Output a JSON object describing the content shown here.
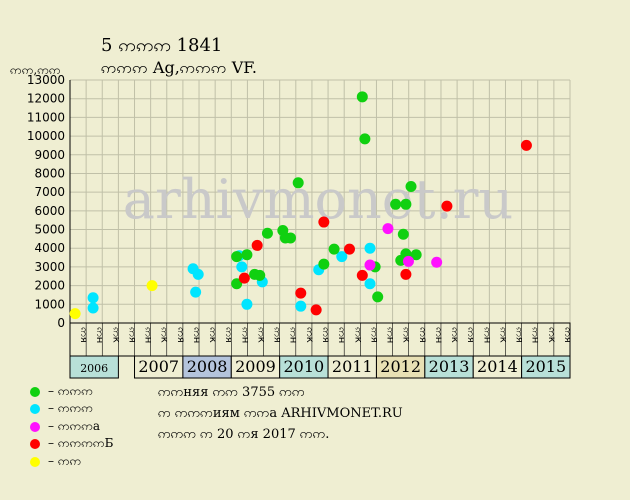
{
  "header": {
    "title_line1": "5 ဢဢဢ 1841",
    "title_line2": "ဢဢဢ Ag,ဢဢဢ VF.",
    "units_label": "ဢဢ,ဢဢ"
  },
  "watermark": "arhivmonet.ru",
  "colors": {
    "green": "#10d010",
    "cyan": "#00e5ff",
    "magenta": "#ff10ff",
    "red": "#ff0000",
    "yellow": "#ffff00",
    "background": "#efeed2",
    "grid": "#c0c0a8"
  },
  "legend": [
    {
      "color_key": "green",
      "label": "– ဢဢဢ"
    },
    {
      "color_key": "cyan",
      "label": "– ဢဢဢ"
    },
    {
      "color_key": "magenta",
      "label": "– ဢဢဢa"
    },
    {
      "color_key": "red",
      "label": "– ဢဢဢဢБ"
    },
    {
      "color_key": "yellow",
      "label": "– ဢဢ"
    }
  ],
  "info": {
    "line1": "ဢဢняя ဢဢ 3755 ဢဢ",
    "line2": "ဢ ဢဢဢиям ဢဢа ARHIVMONET.RU",
    "line3": "ဢဢဢ ဢ 20 ဢя 2017 ဢဢ."
  },
  "chart_data": {
    "type": "scatter",
    "title": "5 ဢဢဢ 1841",
    "subtitle": "ဢဢဢ Ag,ဢဢဢ VF.",
    "ylabel": "ဢဢ,ဢဢ",
    "ylim": [
      0,
      13000
    ],
    "yticks": [
      0,
      1000,
      2000,
      3000,
      4000,
      5000,
      6000,
      7000,
      8000,
      9000,
      10000,
      11000,
      12000,
      13000
    ],
    "grid": true,
    "xlim": [
      2006.0,
      2015.75
    ],
    "year_labels": [
      {
        "year": "2006",
        "color": "#b8e0d8"
      },
      {
        "year": "2007",
        "color": "#efeed2"
      },
      {
        "year": "2008",
        "color": "#b4c4dc"
      },
      {
        "year": "2009",
        "color": "#efeed2"
      },
      {
        "year": "2010",
        "color": "#b8e0d8"
      },
      {
        "year": "2011",
        "color": "#efeed2"
      },
      {
        "year": "2012",
        "color": "#e8e0b4"
      },
      {
        "year": "2013",
        "color": "#b8e0d8"
      },
      {
        "year": "2014",
        "color": "#efeed2"
      },
      {
        "year": "2015",
        "color": "#b8e0d8"
      }
    ],
    "month_labels": [
      "ဢя",
      "ဢн",
      "ဢк"
    ],
    "series": [
      {
        "color_key": "yellow",
        "points": [
          [
            2006.1,
            500
          ],
          [
            2007.6,
            2000
          ]
        ]
      },
      {
        "color_key": "cyan",
        "points": [
          [
            2006.45,
            1350
          ],
          [
            2006.45,
            800
          ],
          [
            2008.4,
            2900
          ],
          [
            2008.5,
            2600
          ],
          [
            2008.45,
            1650
          ],
          [
            2009.3,
            3600
          ],
          [
            2009.35,
            3000
          ],
          [
            2009.45,
            1000
          ],
          [
            2009.75,
            2200
          ],
          [
            2010.5,
            900
          ],
          [
            2010.85,
            2850
          ],
          [
            2011.3,
            3550
          ],
          [
            2011.85,
            2100
          ],
          [
            2011.85,
            4000
          ]
        ]
      },
      {
        "color_key": "green",
        "points": [
          [
            2009.25,
            3550
          ],
          [
            2009.45,
            3650
          ],
          [
            2009.25,
            2100
          ],
          [
            2009.6,
            2600
          ],
          [
            2009.7,
            2550
          ],
          [
            2009.85,
            4800
          ],
          [
            2010.15,
            4950
          ],
          [
            2010.2,
            4550
          ],
          [
            2010.3,
            4550
          ],
          [
            2010.45,
            7500
          ],
          [
            2010.95,
            3150
          ],
          [
            2011.15,
            3950
          ],
          [
            2011.7,
            12100
          ],
          [
            2011.75,
            9850
          ],
          [
            2011.95,
            3000
          ],
          [
            2012.0,
            1400
          ],
          [
            2012.35,
            6350
          ],
          [
            2012.45,
            3350
          ],
          [
            2012.5,
            4750
          ],
          [
            2012.55,
            6350
          ],
          [
            2012.55,
            3700
          ],
          [
            2012.65,
            7300
          ],
          [
            2012.75,
            3650
          ]
        ]
      },
      {
        "color_key": "red",
        "points": [
          [
            2009.4,
            2400
          ],
          [
            2009.65,
            4150
          ],
          [
            2010.5,
            1600
          ],
          [
            2010.8,
            700
          ],
          [
            2010.95,
            5400
          ],
          [
            2011.45,
            3950
          ],
          [
            2011.7,
            2550
          ],
          [
            2012.55,
            2600
          ],
          [
            2013.35,
            6250
          ],
          [
            2014.9,
            9500
          ]
        ]
      },
      {
        "color_key": "magenta",
        "points": [
          [
            2011.85,
            3100
          ],
          [
            2012.2,
            5050
          ],
          [
            2012.6,
            3300
          ],
          [
            2013.15,
            3250
          ]
        ]
      }
    ]
  }
}
